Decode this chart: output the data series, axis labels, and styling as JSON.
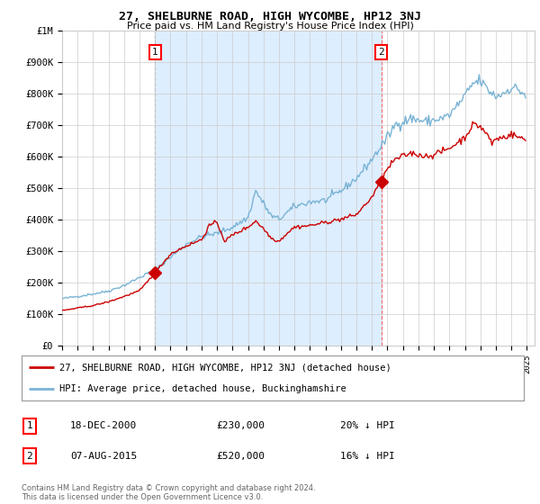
{
  "title": "27, SHELBURNE ROAD, HIGH WYCOMBE, HP12 3NJ",
  "subtitle": "Price paid vs. HM Land Registry's House Price Index (HPI)",
  "ylim": [
    0,
    1000000
  ],
  "yticks": [
    0,
    100000,
    200000,
    300000,
    400000,
    500000,
    600000,
    700000,
    800000,
    900000,
    1000000
  ],
  "ytick_labels": [
    "£0",
    "£100K",
    "£200K",
    "£300K",
    "£400K",
    "£500K",
    "£600K",
    "£700K",
    "£800K",
    "£900K",
    "£1M"
  ],
  "hpi_color": "#7ab3d4",
  "price_color": "#cc0000",
  "vline1_color": "#aaaaaa",
  "vline2_color": "#ff6666",
  "shade_color": "#ddeeff",
  "marker_color": "#cc0000",
  "transaction1_date": 2001.0,
  "transaction1_price": 230000,
  "transaction2_date": 2015.6,
  "transaction2_price": 520000,
  "legend_line1": "27, SHELBURNE ROAD, HIGH WYCOMBE, HP12 3NJ (detached house)",
  "legend_line2": "HPI: Average price, detached house, Buckinghamshire",
  "annotation1_label": "1",
  "annotation1_date": "18-DEC-2000",
  "annotation1_price": "£230,000",
  "annotation1_hpi": "20% ↓ HPI",
  "annotation2_label": "2",
  "annotation2_date": "07-AUG-2015",
  "annotation2_price": "£520,000",
  "annotation2_hpi": "16% ↓ HPI",
  "footnote": "Contains HM Land Registry data © Crown copyright and database right 2024.\nThis data is licensed under the Open Government Licence v3.0.",
  "background_color": "#ffffff",
  "plot_bg_color": "#ffffff",
  "grid_color": "#cccccc",
  "xlim_start": 1995,
  "xlim_end": 2025.5
}
